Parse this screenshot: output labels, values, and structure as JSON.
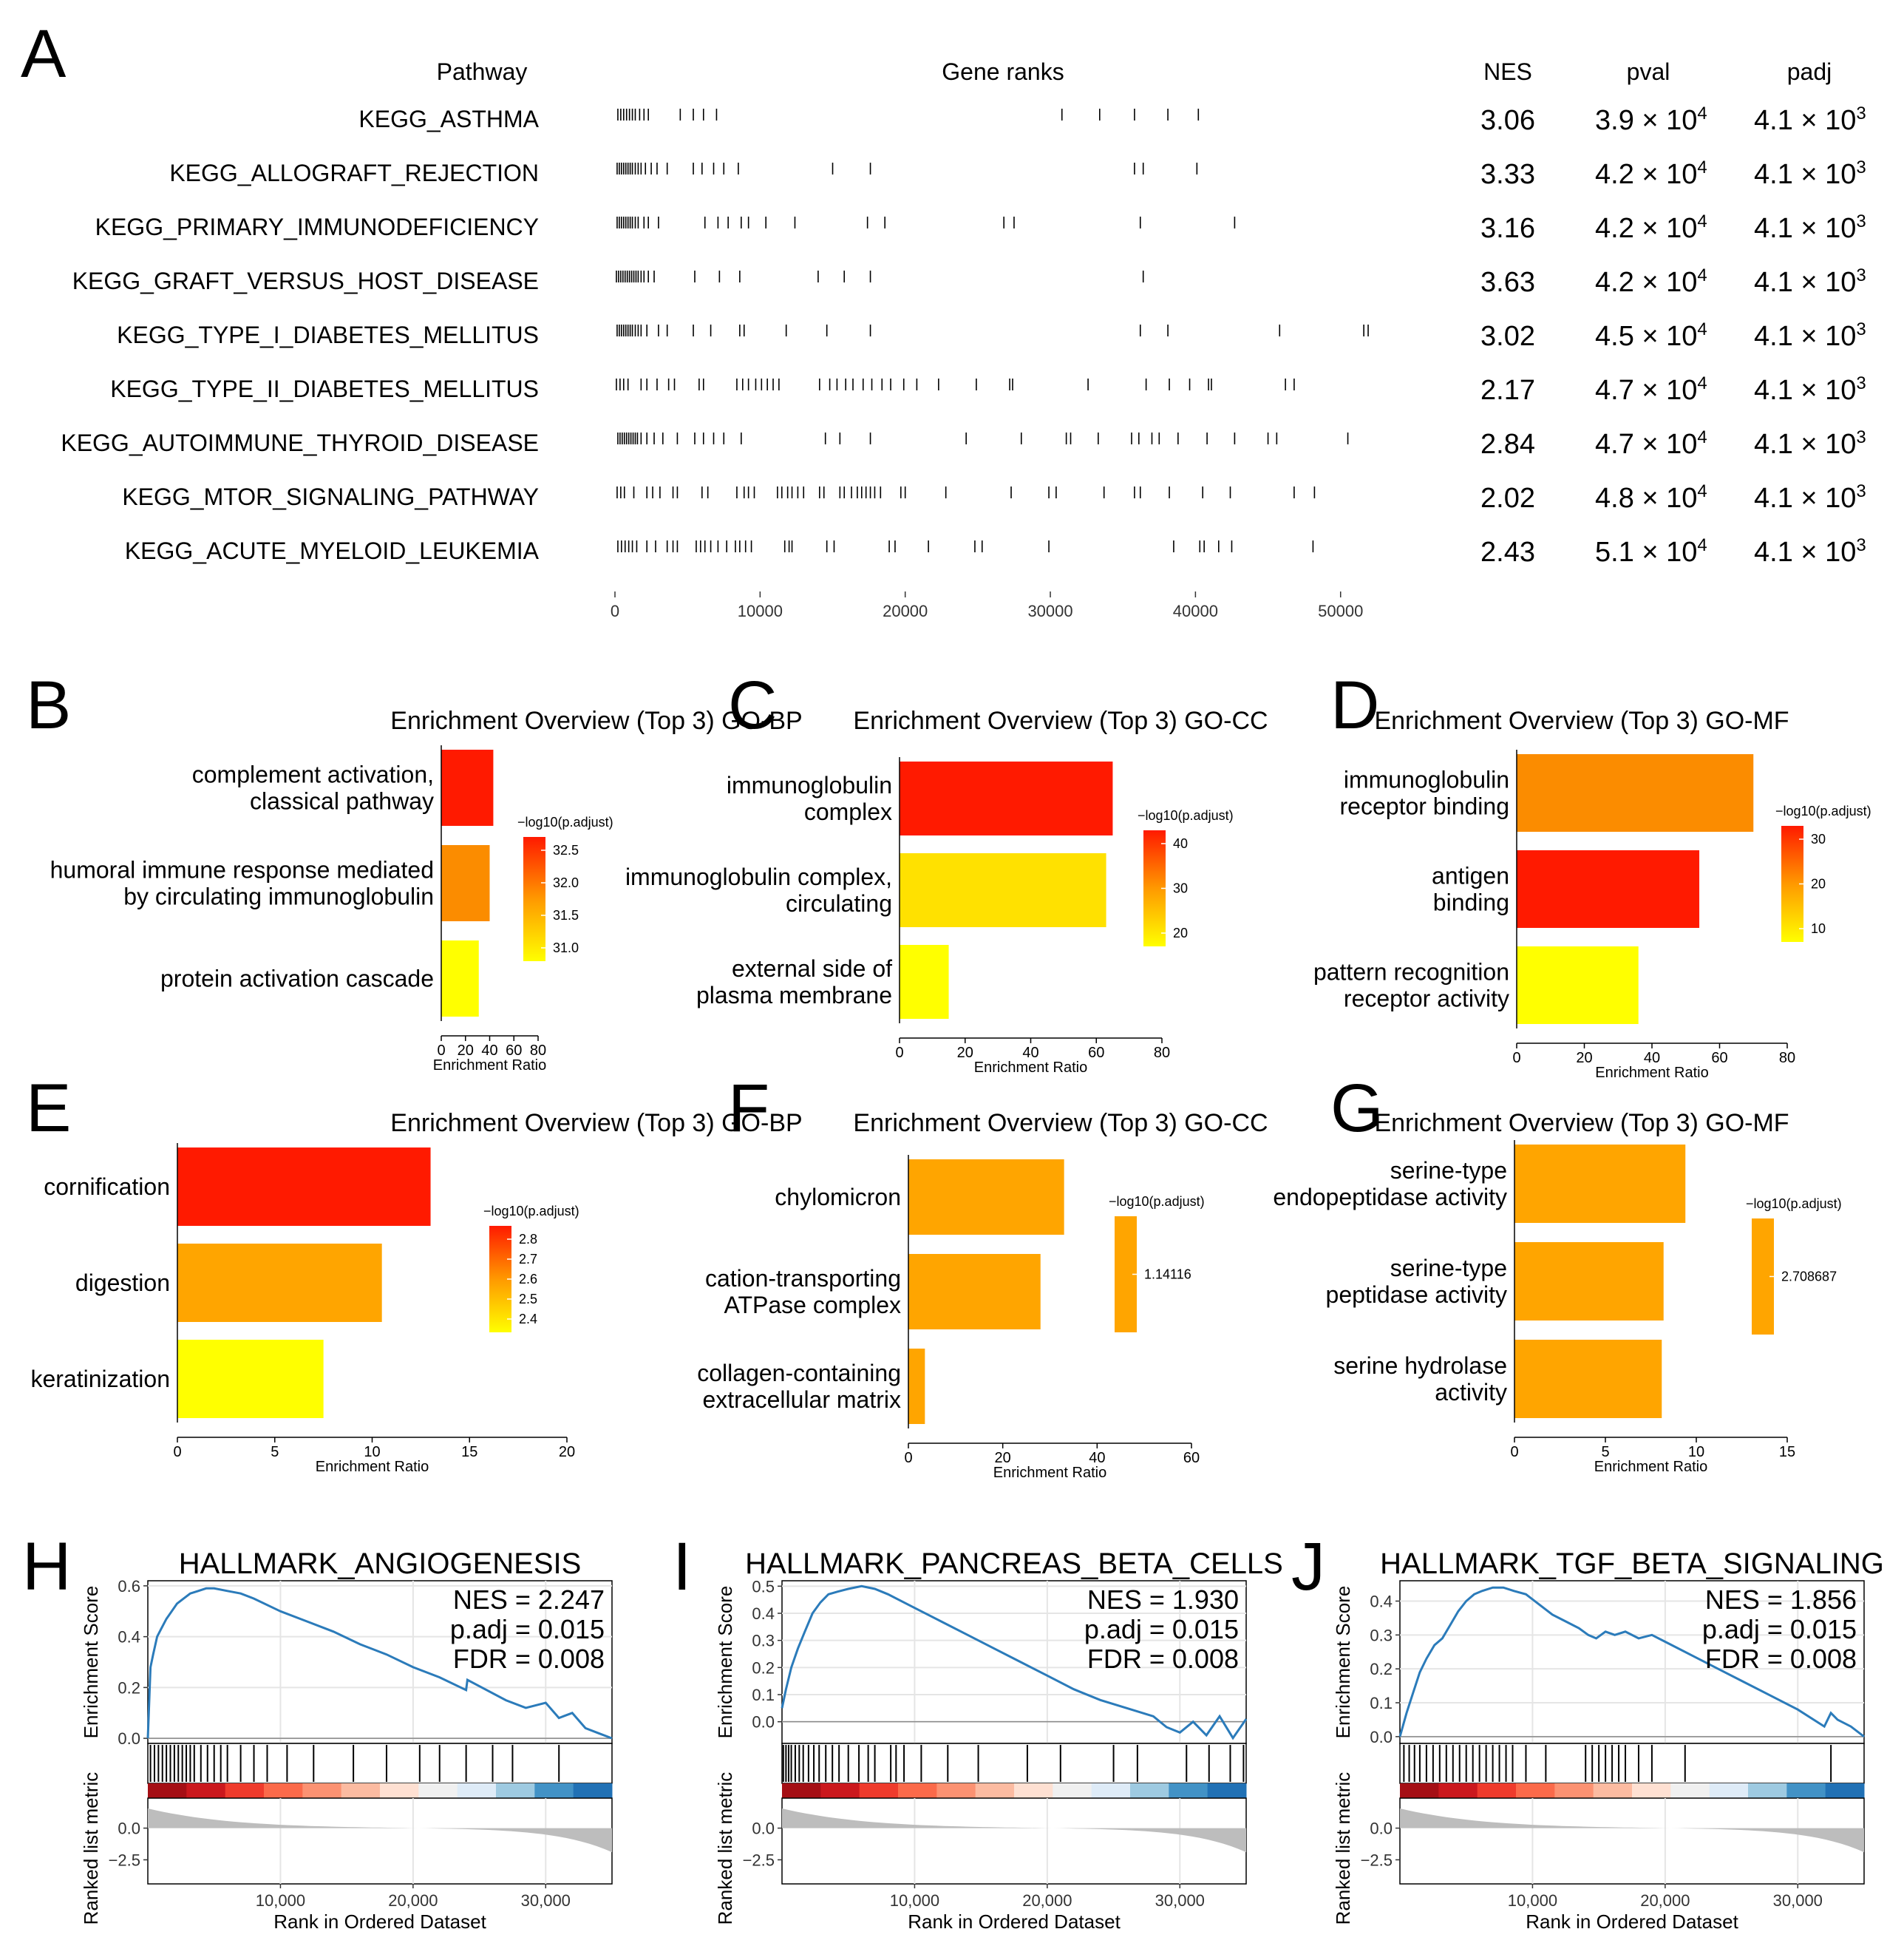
{
  "colors": {
    "bar_red": "#ff1a00",
    "bar_orange": "#fb8c00",
    "bar_lightorange": "#ffa500",
    "bar_yellow": "#ffff00",
    "bar_gold": "#ffe100",
    "es_line": "#2b7bba",
    "hit_line": "#000000",
    "metric_fill": "#bdbdbd",
    "grid": "#e5e5e5"
  },
  "panel_a": {
    "letter": "A",
    "headers": {
      "pathway": "Pathway",
      "gene_ranks": "Gene ranks",
      "nes": "NES",
      "pval": "pval",
      "padj": "padj"
    },
    "x_ticks": [
      "0",
      "10000",
      "20000",
      "30000",
      "40000",
      "50000"
    ],
    "x_tick_values": [
      0,
      10000,
      20000,
      30000,
      40000,
      50000
    ],
    "x_max": 52000,
    "pvals_base": [
      "3.9 × 10",
      "4.2 × 10",
      "4.2 × 10",
      "4.2 × 10",
      "4.5 × 10",
      "4.7 × 10",
      "4.7 × 10",
      "4.8 × 10",
      "5.1 × 10"
    ],
    "pval_exp": "4",
    "padj_base": "4.1 × 10",
    "padj_exp": "3"
  },
  "chart_data": [
    {
      "type": "table",
      "title": "Panel A",
      "columns": [
        "Pathway",
        "Gene ranks",
        "NES",
        "pval",
        "padj"
      ],
      "rows": [
        {
          "pathway": "KEGG_ASTHMA",
          "nes": "3.06",
          "pval": "3.9 × 10⁴",
          "padj": "4.1 × 10³",
          "ranks": [
            200,
            400,
            600,
            800,
            1000,
            1200,
            1400,
            1700,
            2000,
            2300,
            4500,
            5400,
            6100,
            7000,
            30800,
            33400,
            35800,
            38100,
            40200
          ]
        },
        {
          "pathway": "KEGG_ALLOGRAFT_REJECTION",
          "nes": "3.33",
          "pval": "4.2 × 10⁴",
          "padj": "4.1 × 10³",
          "ranks": [
            150,
            300,
            450,
            600,
            750,
            900,
            1050,
            1200,
            1400,
            1600,
            1800,
            2100,
            2500,
            2900,
            3600,
            5400,
            6000,
            6800,
            7500,
            8500,
            15000,
            17600,
            35800,
            36400,
            40100
          ]
        },
        {
          "pathway": "KEGG_PRIMARY_IMMUNODEFICIENCY",
          "nes": "3.16",
          "pval": "4.2 × 10⁴",
          "padj": "4.1 × 10³",
          "ranks": [
            150,
            300,
            450,
            600,
            750,
            900,
            1050,
            1200,
            1400,
            1600,
            2000,
            2300,
            3000,
            6200,
            7100,
            7800,
            8700,
            9200,
            10400,
            12400,
            17400,
            18600,
            26800,
            27500,
            36200,
            42700
          ]
        },
        {
          "pathway": "KEGG_GRAFT_VERSUS_HOST_DISEASE",
          "nes": "3.63",
          "pval": "4.2 × 10⁴",
          "padj": "4.1 × 10³",
          "ranks": [
            100,
            250,
            400,
            550,
            700,
            850,
            1000,
            1150,
            1300,
            1450,
            1600,
            1800,
            2000,
            2300,
            2700,
            5500,
            7200,
            8600,
            14000,
            15800,
            17600,
            36400
          ]
        },
        {
          "pathway": "KEGG_TYPE_I_DIABETES_MELLITUS",
          "nes": "3.02",
          "pval": "4.5 × 10⁴",
          "padj": "4.1 × 10³",
          "ranks": [
            150,
            300,
            450,
            600,
            750,
            900,
            1050,
            1200,
            1400,
            1600,
            1800,
            2200,
            3000,
            3600,
            5400,
            6600,
            8600,
            8900,
            11800,
            14600,
            17600,
            36200,
            38100,
            45800,
            51600,
            51900
          ]
        },
        {
          "pathway": "KEGG_TYPE_II_DIABETES_MELLITUS",
          "nes": "2.17",
          "pval": "4.7 × 10⁴",
          "padj": "4.1 × 10³",
          "ranks": [
            100,
            350,
            600,
            900,
            1800,
            2200,
            2900,
            3700,
            4100,
            5800,
            6100,
            8400,
            8800,
            9200,
            9700,
            10100,
            10500,
            10900,
            11300,
            14100,
            14800,
            15300,
            15900,
            16400,
            17100,
            17700,
            18400,
            19000,
            19900,
            20800,
            22300,
            24900,
            27200,
            27400,
            32600,
            36600,
            38200,
            39600,
            40900,
            41100,
            46200,
            46800
          ]
        },
        {
          "pathway": "KEGG_AUTOIMMUNE_THYROID_DISEASE",
          "nes": "2.84",
          "pval": "4.7 × 10⁴",
          "padj": "4.1 × 10³",
          "ranks": [
            200,
            350,
            500,
            650,
            800,
            950,
            1100,
            1250,
            1400,
            1550,
            1800,
            2200,
            2700,
            3300,
            4300,
            5500,
            6100,
            6800,
            7500,
            8700,
            14500,
            15500,
            17600,
            24200,
            28000,
            31100,
            31400,
            33300,
            35600,
            36100,
            37000,
            37500,
            38800,
            40800,
            42700,
            45000,
            45600,
            50500
          ]
        },
        {
          "pathway": "KEGG_MTOR_SIGNALING_PATHWAY",
          "nes": "2.02",
          "pval": "4.8 × 10⁴",
          "padj": "4.1 × 10³",
          "ranks": [
            150,
            400,
            650,
            1300,
            2200,
            2600,
            3100,
            4000,
            4300,
            6000,
            6400,
            8400,
            8900,
            9200,
            9600,
            11200,
            11500,
            11900,
            12200,
            12600,
            13000,
            14100,
            14400,
            15500,
            15800,
            16300,
            16700,
            17000,
            17300,
            17600,
            17900,
            18300,
            19700,
            20000,
            22800,
            27300,
            29900,
            30400,
            33700,
            35800,
            36200,
            38200,
            40500,
            42400,
            46800,
            48200
          ]
        },
        {
          "pathway": "KEGG_ACUTE_MYELOID_LEUKEMIA",
          "nes": "2.43",
          "pval": "5.1 × 10⁴",
          "padj": "4.1 × 10³",
          "ranks": [
            200,
            450,
            700,
            950,
            1200,
            1500,
            2200,
            2800,
            3600,
            4000,
            4300,
            5600,
            5900,
            6200,
            6600,
            7100,
            7700,
            8300,
            8600,
            9000,
            9400,
            11700,
            12000,
            12200,
            14600,
            15100,
            18900,
            19300,
            21600,
            24800,
            25300,
            29900,
            38500,
            40300,
            40600,
            41600,
            42500,
            48100
          ]
        }
      ],
      "xlim": [
        0,
        52000
      ],
      "xticks": [
        0,
        10000,
        20000,
        30000,
        40000,
        50000
      ]
    },
    {
      "type": "bar",
      "panel": "B",
      "orientation": "horizontal",
      "title": "Enrichment Overview (Top 3) GO-BP",
      "categories": [
        [
          "complement activation,",
          "classical pathway"
        ],
        [
          "humoral immune response mediated",
          "by circulating immunoglobulin"
        ],
        [
          "protein activation cascade"
        ]
      ],
      "values": [
        43,
        40,
        31
      ],
      "colors": [
        "#ff1a00",
        "#fb8c00",
        "#ffff00"
      ],
      "xlabel": "Enrichment Ratio",
      "xlim": [
        0,
        80
      ],
      "xticks": [
        "0",
        "20",
        "40",
        "60",
        "80"
      ],
      "legend": {
        "title": "−log10(p.adjust)",
        "labels": [
          "32.5",
          "32.0",
          "31.5",
          "31.0"
        ],
        "position": "right"
      }
    },
    {
      "type": "bar",
      "panel": "C",
      "orientation": "horizontal",
      "title": "Enrichment Overview (Top 3) GO-CC",
      "categories": [
        [
          "immunoglobulin",
          "complex"
        ],
        [
          "immunoglobulin complex,",
          "circulating"
        ],
        [
          "external side of",
          "plasma membrane"
        ]
      ],
      "values": [
        65,
        63,
        15
      ],
      "colors": [
        "#ff1a00",
        "#ffe100",
        "#ffff00"
      ],
      "xlabel": "Enrichment Ratio",
      "xlim": [
        0,
        80
      ],
      "xticks": [
        "0",
        "20",
        "40",
        "60",
        "80"
      ],
      "legend": {
        "title": "−log10(p.adjust)",
        "labels": [
          "40",
          "30",
          "20"
        ],
        "position": "right"
      }
    },
    {
      "type": "bar",
      "panel": "D",
      "orientation": "horizontal",
      "title": "Enrichment Overview (Top 3) GO-MF",
      "categories": [
        [
          "immunoglobulin",
          "receptor binding"
        ],
        [
          "antigen",
          "binding"
        ],
        [
          "pattern recognition",
          "receptor activity"
        ]
      ],
      "values": [
        70,
        54,
        36
      ],
      "colors": [
        "#fb8c00",
        "#ff1a00",
        "#ffff00"
      ],
      "xlabel": "Enrichment Ratio",
      "xlim": [
        0,
        80
      ],
      "xticks": [
        "0",
        "20",
        "40",
        "60",
        "80"
      ],
      "legend": {
        "title": "−log10(p.adjust)",
        "labels": [
          "30",
          "20",
          "10"
        ],
        "position": "right"
      }
    },
    {
      "type": "bar",
      "panel": "E",
      "orientation": "horizontal",
      "title": "Enrichment Overview (Top 3) GO-BP",
      "categories": [
        [
          "cornification"
        ],
        [
          "digestion"
        ],
        [
          "keratinization"
        ]
      ],
      "values": [
        13,
        10.5,
        7.5
      ],
      "colors": [
        "#ff1a00",
        "#ffa500",
        "#ffff00"
      ],
      "xlabel": "Enrichment Ratio",
      "xlim": [
        0,
        20
      ],
      "xticks": [
        "0",
        "5",
        "10",
        "15",
        "20"
      ],
      "legend": {
        "title": "−log10(p.adjust)",
        "labels": [
          "2.8",
          "2.7",
          "2.6",
          "2.5",
          "2.4"
        ],
        "position": "right"
      }
    },
    {
      "type": "bar",
      "panel": "F",
      "orientation": "horizontal",
      "title": "Enrichment Overview (Top 3) GO-CC",
      "categories": [
        [
          "chylomicron"
        ],
        [
          "cation-transporting",
          "ATPase complex"
        ],
        [
          "collagen-containing",
          "extracellular matrix"
        ]
      ],
      "values": [
        33,
        28,
        3.5
      ],
      "colors": [
        "#ffa500",
        "#ffa500",
        "#ffa500"
      ],
      "xlabel": "Enrichment Ratio",
      "xlim": [
        0,
        60
      ],
      "xticks": [
        "0",
        "20",
        "40",
        "60"
      ],
      "legend": {
        "title": "−log10(p.adjust)",
        "labels": [
          "1.14116"
        ],
        "position": "right"
      }
    },
    {
      "type": "bar",
      "panel": "G",
      "orientation": "horizontal",
      "title": "Enrichment Overview (Top 3) GO-MF",
      "categories": [
        [
          "serine-type",
          "endopeptidase activity"
        ],
        [
          "serine-type",
          "peptidase activity"
        ],
        [
          "serine hydrolase",
          "activity"
        ]
      ],
      "values": [
        9.4,
        8.2,
        8.1
      ],
      "colors": [
        "#ffa500",
        "#ffa500",
        "#ffa500"
      ],
      "xlabel": "Enrichment Ratio",
      "xlim": [
        0,
        15
      ],
      "xticks": [
        "0",
        "5",
        "10",
        "15"
      ],
      "legend": {
        "title": "−log10(p.adjust)",
        "labels": [
          "2.708687"
        ],
        "position": "right"
      }
    },
    {
      "type": "line",
      "panel": "H",
      "title": "HALLMARK_ANGIOGENESIS",
      "stats": [
        "NES = 2.247",
        "p.adj = 0.015",
        "FDR = 0.008"
      ],
      "x": [
        0,
        200,
        400,
        700,
        1000,
        1400,
        1800,
        2200,
        2700,
        3200,
        3800,
        4400,
        5000,
        6000,
        7000,
        8000,
        10000,
        12000,
        14000,
        16000,
        18000,
        20000,
        22000,
        24000,
        24100,
        27000,
        28500,
        30000,
        31000,
        32000,
        33000,
        34000,
        35000
      ],
      "y": [
        0,
        0.28,
        0.33,
        0.4,
        0.43,
        0.47,
        0.5,
        0.53,
        0.55,
        0.57,
        0.58,
        0.59,
        0.59,
        0.58,
        0.57,
        0.55,
        0.5,
        0.46,
        0.42,
        0.37,
        0.33,
        0.28,
        0.24,
        0.19,
        0.23,
        0.15,
        0.12,
        0.14,
        0.08,
        0.1,
        0.04,
        0.02,
        0.0
      ],
      "hits": [
        200,
        500,
        800,
        1100,
        1400,
        1700,
        2000,
        2300,
        2600,
        2900,
        3200,
        3500,
        4000,
        4500,
        5000,
        5500,
        6000,
        7000,
        8000,
        9000,
        10500,
        12500,
        15500,
        18000,
        20500,
        22000,
        24000,
        26000,
        27500,
        31000
      ],
      "xlabel": "Rank in Ordered Dataset",
      "ylabel_top": "Enrichment Score",
      "ylabel_bottom": "Ranked list metric",
      "xlim": [
        0,
        35000
      ],
      "ylim": [
        -0.02,
        0.62
      ],
      "xticks": [
        "10,000",
        "20,000",
        "30,000"
      ],
      "yticks": [
        "0.0",
        "0.2",
        "0.4",
        "0.6"
      ],
      "metric_ticks": [
        "0.0",
        "−2.5"
      ]
    },
    {
      "type": "line",
      "panel": "I",
      "title": "HALLMARK_PANCREAS_BETA_CELLS",
      "stats": [
        "NES = 1.930",
        "p.adj = 0.015",
        "FDR = 0.008"
      ],
      "x": [
        0,
        300,
        700,
        1200,
        1700,
        2300,
        2900,
        3500,
        4200,
        5000,
        6000,
        7000,
        8000,
        10000,
        12000,
        14000,
        16000,
        18000,
        20000,
        22000,
        24000,
        26000,
        28000,
        29000,
        30000,
        31000,
        32000,
        33000,
        34000,
        35000
      ],
      "y": [
        0.05,
        0.12,
        0.2,
        0.27,
        0.33,
        0.4,
        0.44,
        0.47,
        0.48,
        0.49,
        0.5,
        0.49,
        0.47,
        0.42,
        0.37,
        0.32,
        0.27,
        0.22,
        0.17,
        0.12,
        0.08,
        0.05,
        0.02,
        -0.02,
        -0.04,
        0.0,
        -0.05,
        0.02,
        -0.06,
        0.01
      ],
      "hits": [
        100,
        300,
        500,
        700,
        1000,
        1300,
        1600,
        2000,
        2400,
        2800,
        3300,
        3800,
        4300,
        5000,
        5800,
        6500,
        7000,
        8200,
        8600,
        9200,
        10500,
        12500,
        14800,
        18500,
        21000,
        25000,
        26800,
        30500,
        32200,
        33800,
        34800
      ],
      "xlabel": "Rank in Ordered Dataset",
      "ylabel_top": "Enrichment Score",
      "ylabel_bottom": "Ranked list metric",
      "xlim": [
        0,
        35000
      ],
      "ylim": [
        -0.08,
        0.52
      ],
      "xticks": [
        "10,000",
        "20,000",
        "30,000"
      ],
      "yticks": [
        "0.0",
        "0.1",
        "0.2",
        "0.3",
        "0.4",
        "0.5"
      ],
      "metric_ticks": [
        "0.0",
        "−2.5"
      ]
    },
    {
      "type": "line",
      "panel": "J",
      "title": "HALLMARK_TGF_BETA_SIGNALING",
      "stats": [
        "NES = 1.856",
        "p.adj = 0.015",
        "FDR = 0.008"
      ],
      "x": [
        0,
        500,
        1000,
        1500,
        2000,
        2600,
        3200,
        3800,
        4400,
        5000,
        5600,
        6200,
        7000,
        7800,
        8600,
        9500,
        10500,
        11500,
        12500,
        13500,
        14200,
        14800,
        15500,
        16200,
        17000,
        18000,
        19000,
        20000,
        22000,
        24000,
        26000,
        28000,
        30000,
        32000,
        32500,
        33000,
        34000,
        35000
      ],
      "y": [
        0,
        0.07,
        0.13,
        0.19,
        0.23,
        0.27,
        0.29,
        0.33,
        0.37,
        0.4,
        0.42,
        0.43,
        0.44,
        0.44,
        0.43,
        0.42,
        0.39,
        0.36,
        0.34,
        0.32,
        0.3,
        0.29,
        0.31,
        0.3,
        0.31,
        0.29,
        0.3,
        0.28,
        0.24,
        0.2,
        0.16,
        0.12,
        0.08,
        0.03,
        0.07,
        0.05,
        0.03,
        0.0
      ],
      "hits": [
        300,
        700,
        1100,
        1500,
        2000,
        2500,
        3000,
        3500,
        4000,
        4500,
        5000,
        5500,
        6000,
        6500,
        7000,
        7500,
        8000,
        8500,
        9500,
        11000,
        14000,
        14500,
        15000,
        15500,
        16000,
        16500,
        17000,
        18000,
        19000,
        21500,
        32500
      ],
      "xlabel": "Rank in Ordered Dataset",
      "ylabel_top": "Enrichment Score",
      "ylabel_bottom": "Ranked list metric",
      "xlim": [
        0,
        35000
      ],
      "ylim": [
        -0.02,
        0.46
      ],
      "xticks": [
        "10,000",
        "20,000",
        "30,000"
      ],
      "yticks": [
        "0.0",
        "0.1",
        "0.2",
        "0.3",
        "0.4"
      ],
      "metric_ticks": [
        "0.0",
        "−2.5"
      ]
    }
  ],
  "panel_letters": [
    "B",
    "C",
    "D",
    "E",
    "F",
    "G",
    "H",
    "I",
    "J"
  ]
}
